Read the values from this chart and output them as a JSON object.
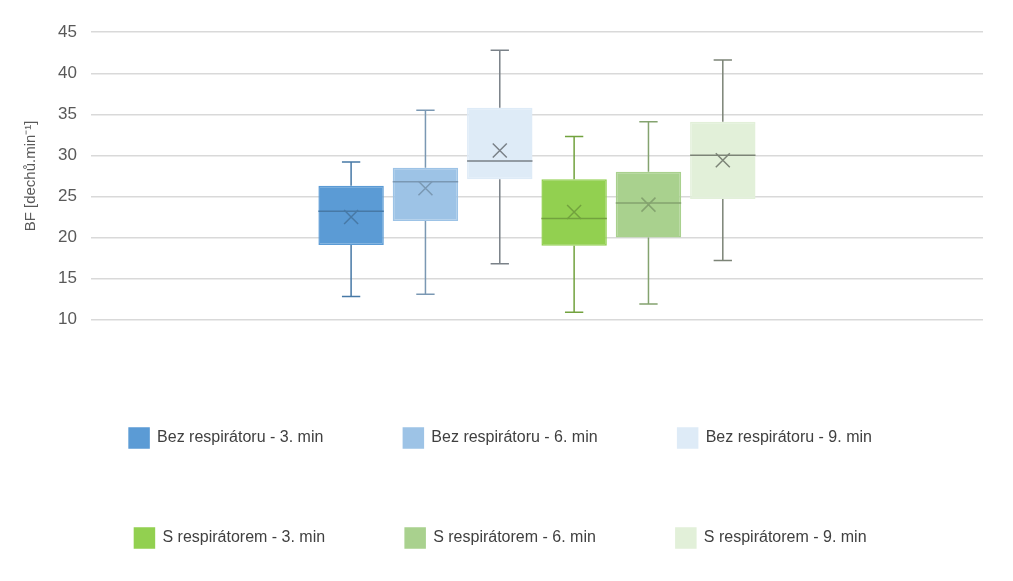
{
  "chart_data": {
    "type": "box",
    "ylabel": "BF [dechů.min⁻¹]",
    "categories": [
      null
    ],
    "ylim": [
      10,
      45
    ],
    "yticks": [
      10,
      15,
      20,
      25,
      30,
      35,
      40,
      45
    ],
    "grid": "y",
    "legend": "bottom",
    "marker": "cross",
    "series": [
      {
        "name": "Bez respirátoru - 3. min",
        "color": "#5b9bd5",
        "boxes": [
          {
            "low": 12.8,
            "q1": 19.1,
            "median": 23.2,
            "q3": 26.3,
            "high": 29.2,
            "mean": 22.5
          }
        ]
      },
      {
        "name": "Bez respirátoru - 6. min",
        "color": "#9dc3e6",
        "boxes": [
          {
            "low": 13.1,
            "q1": 22.0,
            "median": 26.8,
            "q3": 28.5,
            "high": 35.5,
            "mean": 26.0
          }
        ]
      },
      {
        "name": "Bez respirátoru - 9. min",
        "color": "#deebf7",
        "boxes": [
          {
            "low": 16.8,
            "q1": 27.1,
            "median": 29.3,
            "q3": 35.8,
            "high": 42.8,
            "mean": 30.6
          }
        ]
      },
      {
        "name": "S respirátorem - 3. min",
        "color": "#92d050",
        "boxes": [
          {
            "low": 10.9,
            "q1": 19.0,
            "median": 22.3,
            "q3": 27.1,
            "high": 32.3,
            "mean": 23.1
          }
        ]
      },
      {
        "name": "S respirátorem - 6. min",
        "color": "#a9d18e",
        "boxes": [
          {
            "low": 11.9,
            "q1": 20.0,
            "median": 24.2,
            "q3": 28.0,
            "high": 34.1,
            "mean": 24.0
          }
        ]
      },
      {
        "name": "S respirátorem - 9. min",
        "color": "#e2f0d9",
        "boxes": [
          {
            "low": 17.2,
            "q1": 24.7,
            "median": 30.0,
            "q3": 34.1,
            "high": 41.6,
            "mean": 29.4
          }
        ]
      }
    ]
  }
}
